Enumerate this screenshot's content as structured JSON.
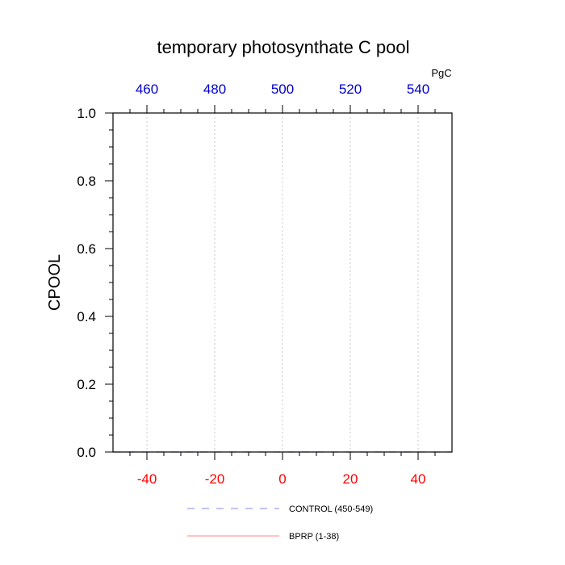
{
  "chart_data": {
    "type": "line",
    "title": "temporary photosynthate C pool",
    "ylabel": "CPOOL",
    "top_axis_unit": "PgC",
    "xlim": [
      -50,
      50
    ],
    "ylim": [
      0,
      1
    ],
    "bottom_ticks": [
      {
        "value": -40,
        "label": "-40"
      },
      {
        "value": -20,
        "label": "-20"
      },
      {
        "value": 0,
        "label": "0"
      },
      {
        "value": 20,
        "label": "20"
      },
      {
        "value": 40,
        "label": "40"
      }
    ],
    "top_ticks": [
      {
        "value": -40,
        "label": "460"
      },
      {
        "value": -20,
        "label": "480"
      },
      {
        "value": 0,
        "label": "500"
      },
      {
        "value": 20,
        "label": "520"
      },
      {
        "value": 40,
        "label": "540"
      }
    ],
    "y_ticks": [
      {
        "value": 0.0,
        "label": "0.0"
      },
      {
        "value": 0.2,
        "label": "0.2"
      },
      {
        "value": 0.4,
        "label": "0.4"
      },
      {
        "value": 0.6,
        "label": "0.6"
      },
      {
        "value": 0.8,
        "label": "0.8"
      },
      {
        "value": 1.0,
        "label": "1.0"
      }
    ],
    "grid": "vertical dotted at major x ticks",
    "legend_position": "bottom",
    "colors": {
      "bottom_tick_labels": "#ff0000",
      "top_tick_labels": "#0000cc",
      "grid": "#bbbbbb",
      "axes": "#000000"
    },
    "series": [
      {
        "name": "CONTROL (450-549)",
        "color": "#8888ee",
        "dash": "dashed",
        "x": [
          -50,
          50
        ],
        "y": [
          0,
          0
        ]
      },
      {
        "name": "BPRP (1-38)",
        "color": "#ff8888",
        "dash": "solid",
        "x": [],
        "y": []
      }
    ]
  }
}
